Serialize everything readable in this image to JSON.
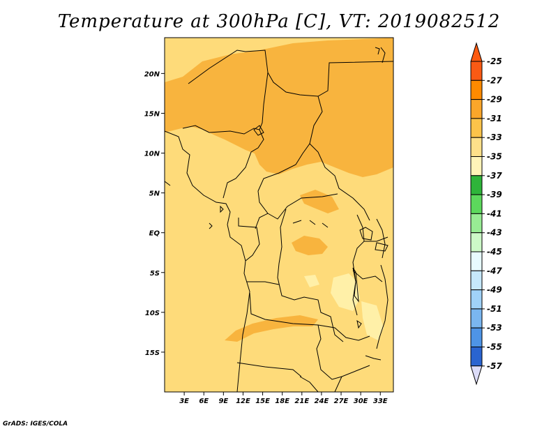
{
  "title": "Temperature at 300hPa [C], VT: 2019082512",
  "credit": "GrADS: IGES/COLA",
  "map": {
    "lon_range": [
      0,
      35
    ],
    "lat_range": [
      -20,
      24.5
    ],
    "lon_ticks": [
      {
        "lon": 3,
        "label": "3E"
      },
      {
        "lon": 6,
        "label": "6E"
      },
      {
        "lon": 9,
        "label": "9E"
      },
      {
        "lon": 12,
        "label": "12E"
      },
      {
        "lon": 15,
        "label": "15E"
      },
      {
        "lon": 18,
        "label": "18E"
      },
      {
        "lon": 21,
        "label": "21E"
      },
      {
        "lon": 24,
        "label": "24E"
      },
      {
        "lon": 27,
        "label": "27E"
      },
      {
        "lon": 30,
        "label": "30E"
      },
      {
        "lon": 33,
        "label": "33E"
      }
    ],
    "lat_ticks": [
      {
        "lat": 20,
        "label": "20N"
      },
      {
        "lat": 15,
        "label": "15N"
      },
      {
        "lat": 10,
        "label": "10N"
      },
      {
        "lat": 5,
        "label": "5N"
      },
      {
        "lat": 0,
        "label": "EQ"
      },
      {
        "lat": -5,
        "label": "5S"
      },
      {
        "lat": -10,
        "label": "10S"
      },
      {
        "lat": -15,
        "label": "15S"
      }
    ],
    "fill_colors": {
      "-29": "#f8b43e",
      "-31": "#fedb7a",
      "-33": "#fff0a8"
    }
  },
  "colorbar": {
    "labels": [
      "-25",
      "-27",
      "-29",
      "-31",
      "-33",
      "-35",
      "-37",
      "-39",
      "-41",
      "-43",
      "-45",
      "-47",
      "-49",
      "-51",
      "-53",
      "-55",
      "-57"
    ],
    "colors": [
      "#fa5a14",
      "#fe8a00",
      "#fba62a",
      "#fcc34a",
      "#fee08a",
      "#fff4b8",
      "#2eb43a",
      "#5cd85c",
      "#98ec94",
      "#cdf9c8",
      "#e8fbff",
      "#c6e8fb",
      "#a0d2f8",
      "#7ab6f0",
      "#4e94e6",
      "#2a64d0",
      "#1040b0"
    ],
    "top_color": "#f03c10",
    "bottom_color": "#0a1478",
    "end_colors": [
      "#fe5a10",
      "#dcdcf8"
    ]
  }
}
